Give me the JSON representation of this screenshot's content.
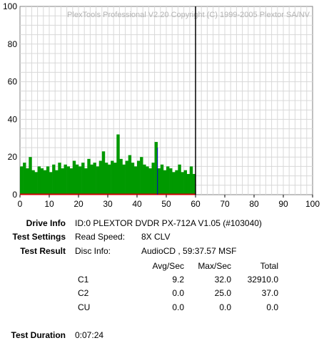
{
  "watermark": "PlexTools Professional V2.20 Copyright (C) 1999-2005 Plextor SA/NV",
  "chart_data": {
    "type": "bar",
    "title": "",
    "xlabel": "",
    "ylabel": "",
    "xlim": [
      0,
      100
    ],
    "ylim": [
      0,
      100
    ],
    "x_ticks": [
      "0",
      "10",
      "20",
      "30",
      "40",
      "50",
      "60",
      "70",
      "80",
      "90",
      "100"
    ],
    "y_ticks": [
      "0",
      "20",
      "40",
      "60",
      "80",
      "100"
    ],
    "grid": true,
    "end_marker_x": 60,
    "series": [
      {
        "metric": "C1",
        "color": "#009900",
        "x": [
          0.5,
          1.5,
          2.5,
          3.5,
          4.5,
          5.5,
          6.5,
          7.5,
          8.5,
          9.5,
          10.5,
          11.5,
          12.5,
          13.5,
          14.5,
          15.5,
          16.5,
          17.5,
          18.5,
          19.5,
          20.5,
          21.5,
          22.5,
          23.5,
          24.5,
          25.5,
          26.5,
          27.5,
          28.5,
          29.5,
          30.5,
          31.5,
          32.5,
          33.5,
          34.5,
          35.5,
          36.5,
          37.5,
          38.5,
          39.5,
          40.5,
          41.5,
          42.5,
          43.5,
          44.5,
          45.5,
          46.5,
          47.5,
          48.5,
          49.5,
          50.5,
          51.5,
          52.5,
          53.5,
          54.5,
          55.5,
          56.5,
          57.5,
          58.5,
          59.5
        ],
        "values": [
          15,
          17,
          14,
          20,
          13,
          12,
          15,
          14,
          13,
          15,
          12,
          16,
          13,
          17,
          14,
          16,
          15,
          14,
          18,
          16,
          15,
          17,
          14,
          19,
          16,
          17,
          15,
          18,
          23,
          17,
          16,
          18,
          17,
          32,
          19,
          16,
          18,
          21,
          17,
          15,
          18,
          20,
          16,
          15,
          14,
          17,
          28,
          14,
          16,
          13,
          15,
          14,
          12,
          13,
          16,
          12,
          13,
          11,
          15,
          11
        ]
      },
      {
        "metric": "C2",
        "color": "#0000cc",
        "x": [
          47
        ],
        "values": [
          25
        ]
      }
    ]
  },
  "info": {
    "drive_label": "Drive Info",
    "drive_value": "ID:0 PLEXTOR DVDR PX-712A V1.05 (#103040)",
    "settings_label": "Test Settings",
    "read_speed_label": "Read Speed:",
    "read_speed_value": "8X CLV",
    "result_label": "Test Result",
    "disc_info_label": "Disc Info:",
    "disc_info_value": "AudioCD , 59:37.57 MSF",
    "duration_label": "Test Duration",
    "duration_value": "0:07:24"
  },
  "results_table": {
    "headers": [
      "Avg/Sec",
      "Max/Sec",
      "Total"
    ],
    "rows": [
      {
        "name": "C1",
        "avg": "9.2",
        "max": "32.0",
        "total": "32910.0"
      },
      {
        "name": "C2",
        "avg": "0.0",
        "max": "25.0",
        "total": "37.0"
      },
      {
        "name": "CU",
        "avg": "0.0",
        "max": "0.0",
        "total": "0.0"
      }
    ]
  }
}
